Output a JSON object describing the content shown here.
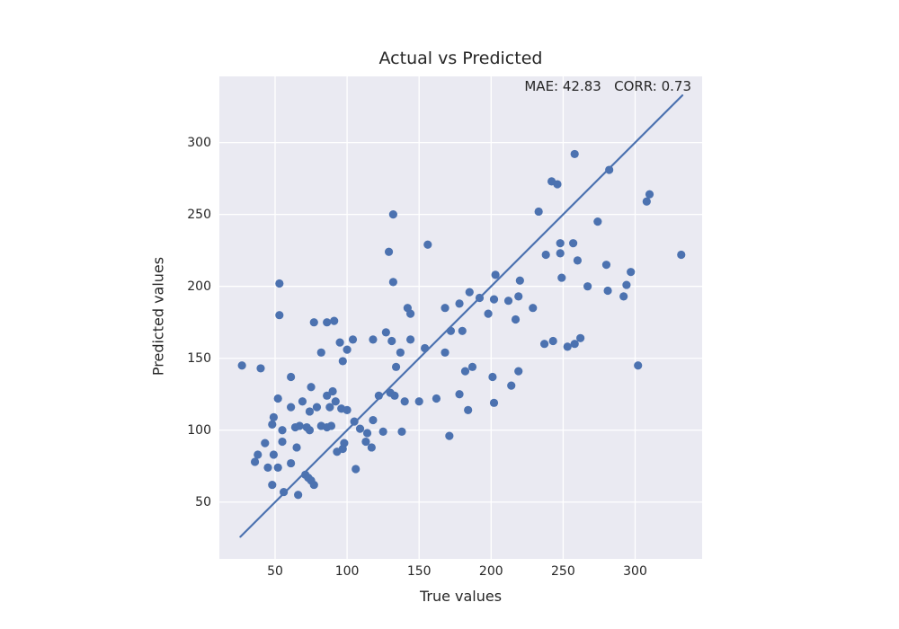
{
  "figure": {
    "title": "Actual vs Predicted",
    "annotation": "MAE: 42.83   CORR: 0.73",
    "xlabel": "True values",
    "ylabel": "Predicted values"
  },
  "colors": {
    "figure_bg": "#ffffff",
    "plot_bg": "#eaeaf2",
    "grid": "#ffffff",
    "marker": "#4c72b0",
    "line": "#4c72b0",
    "text": "#262626"
  },
  "chart_data": {
    "type": "scatter",
    "title": "Actual vs Predicted",
    "xlabel": "True values",
    "ylabel": "Predicted values",
    "annotation": "MAE: 42.83   CORR: 0.73",
    "mae": 42.83,
    "corr": 0.73,
    "xlim": [
      11.3,
      346.5
    ],
    "ylim": [
      10.5,
      346.0
    ],
    "x_ticks": [
      50,
      100,
      150,
      200,
      250,
      300
    ],
    "y_ticks": [
      50,
      100,
      150,
      200,
      250,
      300
    ],
    "grid": true,
    "marker_radius": 4.6,
    "identity_line": {
      "x1": 25.9,
      "y1": 25.9,
      "x2": 332.8,
      "y2": 332.8
    },
    "points": [
      [
        53,
        202
      ],
      [
        132,
        250
      ],
      [
        233,
        252
      ],
      [
        129,
        224
      ],
      [
        156,
        229
      ],
      [
        203,
        208
      ],
      [
        220,
        204
      ],
      [
        132,
        203
      ],
      [
        258,
        292
      ],
      [
        282,
        281
      ],
      [
        242,
        273
      ],
      [
        246,
        271
      ],
      [
        310,
        264
      ],
      [
        308,
        259
      ],
      [
        274,
        245
      ],
      [
        257,
        230
      ],
      [
        248,
        230
      ],
      [
        248,
        223
      ],
      [
        238,
        222
      ],
      [
        260,
        218
      ],
      [
        280,
        215
      ],
      [
        332,
        222
      ],
      [
        249,
        206
      ],
      [
        297,
        210
      ],
      [
        267,
        200
      ],
      [
        281,
        197
      ],
      [
        294,
        201
      ],
      [
        292,
        193
      ],
      [
        237,
        160
      ],
      [
        243,
        162
      ],
      [
        253,
        158
      ],
      [
        258,
        160
      ],
      [
        262,
        164
      ],
      [
        302,
        145
      ],
      [
        53,
        180
      ],
      [
        77,
        175
      ],
      [
        86,
        175
      ],
      [
        91,
        176
      ],
      [
        95,
        161
      ],
      [
        104,
        163
      ],
      [
        100,
        156
      ],
      [
        118,
        163
      ],
      [
        82,
        154
      ],
      [
        97,
        148
      ],
      [
        27,
        145
      ],
      [
        40,
        143
      ],
      [
        61,
        137
      ],
      [
        75,
        130
      ],
      [
        52,
        122
      ],
      [
        69,
        120
      ],
      [
        86,
        124
      ],
      [
        90,
        127
      ],
      [
        92,
        120
      ],
      [
        61,
        116
      ],
      [
        79,
        116
      ],
      [
        88,
        116
      ],
      [
        74,
        113
      ],
      [
        185,
        196
      ],
      [
        192,
        192
      ],
      [
        202,
        191
      ],
      [
        212,
        190
      ],
      [
        219,
        193
      ],
      [
        142,
        185
      ],
      [
        144,
        181
      ],
      [
        168,
        185
      ],
      [
        178,
        188
      ],
      [
        229,
        185
      ],
      [
        198,
        181
      ],
      [
        217,
        177
      ],
      [
        127,
        168
      ],
      [
        131,
        162
      ],
      [
        144,
        163
      ],
      [
        154,
        157
      ],
      [
        137,
        154
      ],
      [
        180,
        169
      ],
      [
        172,
        169
      ],
      [
        168,
        154
      ],
      [
        134,
        144
      ],
      [
        182,
        141
      ],
      [
        187,
        144
      ],
      [
        201,
        137
      ],
      [
        219,
        141
      ],
      [
        214,
        131
      ],
      [
        130,
        126
      ],
      [
        133,
        124
      ],
      [
        140,
        120
      ],
      [
        150,
        120
      ],
      [
        162,
        122
      ],
      [
        178,
        125
      ],
      [
        184,
        114
      ],
      [
        202,
        119
      ],
      [
        48,
        104
      ],
      [
        55,
        100
      ],
      [
        64,
        102
      ],
      [
        67,
        103
      ],
      [
        72,
        102
      ],
      [
        74,
        100
      ],
      [
        82,
        103
      ],
      [
        86,
        102
      ],
      [
        89,
        103
      ],
      [
        49,
        109
      ],
      [
        43,
        91
      ],
      [
        38,
        83
      ],
      [
        49,
        83
      ],
      [
        36,
        78
      ],
      [
        45,
        74
      ],
      [
        52,
        74
      ],
      [
        55,
        92
      ],
      [
        65,
        88
      ],
      [
        61,
        77
      ],
      [
        48,
        62
      ],
      [
        56,
        57
      ],
      [
        66,
        55
      ],
      [
        71,
        69
      ],
      [
        73,
        67
      ],
      [
        75,
        65
      ],
      [
        77,
        62
      ],
      [
        93,
        85
      ],
      [
        97,
        87
      ],
      [
        98,
        91
      ],
      [
        106,
        73
      ],
      [
        96,
        115
      ],
      [
        100,
        114
      ],
      [
        105,
        106
      ],
      [
        109,
        101
      ],
      [
        114,
        98
      ],
      [
        113,
        92
      ],
      [
        117,
        88
      ],
      [
        118,
        107
      ],
      [
        122,
        124
      ],
      [
        125,
        99
      ],
      [
        138,
        99
      ],
      [
        171,
        96
      ]
    ]
  }
}
